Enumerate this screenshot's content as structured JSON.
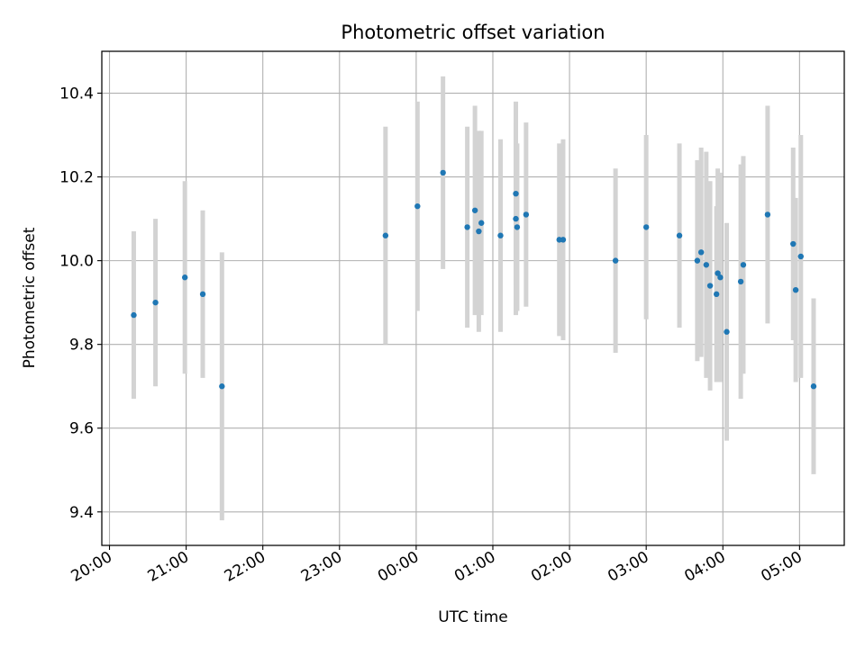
{
  "chart_data": {
    "type": "scatter",
    "title": "Photometric offset variation",
    "xlabel": "UTC time",
    "ylabel": "Photometric offset",
    "grid": true,
    "colors": {
      "marker": "#1f77b4",
      "errorbar": "#d3d3d3",
      "grid": "#b0b0b0"
    },
    "xlim": [
      "19:54",
      "05:35"
    ],
    "ylim": [
      9.32,
      10.5
    ],
    "x_ticks": [
      "20:00",
      "21:00",
      "22:00",
      "23:00",
      "00:00",
      "01:00",
      "02:00",
      "03:00",
      "04:00",
      "05:00"
    ],
    "y_ticks": [
      "9.4",
      "9.6",
      "9.8",
      "10.0",
      "10.2",
      "10.4"
    ],
    "y_tick_values": [
      9.4,
      9.6,
      9.8,
      10.0,
      10.2,
      10.4
    ],
    "points": [
      {
        "x": "20:19",
        "y": 9.87,
        "yerr": 0.2
      },
      {
        "x": "20:36",
        "y": 9.9,
        "yerr": 0.2
      },
      {
        "x": "20:59",
        "y": 9.96,
        "yerr": 0.23
      },
      {
        "x": "21:13",
        "y": 9.92,
        "yerr": 0.2
      },
      {
        "x": "21:28",
        "y": 9.7,
        "yerr": 0.32
      },
      {
        "x": "23:36",
        "y": 10.06,
        "yerr": 0.26
      },
      {
        "x": "00:01",
        "y": 10.13,
        "yerr": 0.25
      },
      {
        "x": "00:21",
        "y": 10.21,
        "yerr": 0.23
      },
      {
        "x": "00:40",
        "y": 10.08,
        "yerr": 0.24
      },
      {
        "x": "00:46",
        "y": 10.12,
        "yerr": 0.25
      },
      {
        "x": "00:49",
        "y": 10.07,
        "yerr": 0.24
      },
      {
        "x": "00:51",
        "y": 10.09,
        "yerr": 0.22
      },
      {
        "x": "01:06",
        "y": 10.06,
        "yerr": 0.23
      },
      {
        "x": "01:18",
        "y": 10.16,
        "yerr": 0.22
      },
      {
        "x": "01:18",
        "y": 10.1,
        "yerr": 0.23
      },
      {
        "x": "01:19",
        "y": 10.08,
        "yerr": 0.2
      },
      {
        "x": "01:26",
        "y": 10.11,
        "yerr": 0.22
      },
      {
        "x": "01:52",
        "y": 10.05,
        "yerr": 0.23
      },
      {
        "x": "01:55",
        "y": 10.05,
        "yerr": 0.24
      },
      {
        "x": "02:36",
        "y": 10.0,
        "yerr": 0.22
      },
      {
        "x": "03:00",
        "y": 10.08,
        "yerr": 0.22
      },
      {
        "x": "03:26",
        "y": 10.06,
        "yerr": 0.22
      },
      {
        "x": "03:40",
        "y": 10.0,
        "yerr": 0.24
      },
      {
        "x": "03:43",
        "y": 10.02,
        "yerr": 0.25
      },
      {
        "x": "03:47",
        "y": 9.99,
        "yerr": 0.27
      },
      {
        "x": "03:50",
        "y": 9.94,
        "yerr": 0.25
      },
      {
        "x": "03:55",
        "y": 9.92,
        "yerr": 0.21
      },
      {
        "x": "03:56",
        "y": 9.97,
        "yerr": 0.25
      },
      {
        "x": "03:58",
        "y": 9.96,
        "yerr": 0.25
      },
      {
        "x": "04:03",
        "y": 9.83,
        "yerr": 0.26
      },
      {
        "x": "04:14",
        "y": 9.95,
        "yerr": 0.28
      },
      {
        "x": "04:16",
        "y": 9.99,
        "yerr": 0.26
      },
      {
        "x": "04:35",
        "y": 10.11,
        "yerr": 0.26
      },
      {
        "x": "04:55",
        "y": 10.04,
        "yerr": 0.23
      },
      {
        "x": "04:57",
        "y": 9.93,
        "yerr": 0.22
      },
      {
        "x": "05:01",
        "y": 10.01,
        "yerr": 0.29
      },
      {
        "x": "05:11",
        "y": 9.7,
        "yerr": 0.21
      }
    ]
  }
}
